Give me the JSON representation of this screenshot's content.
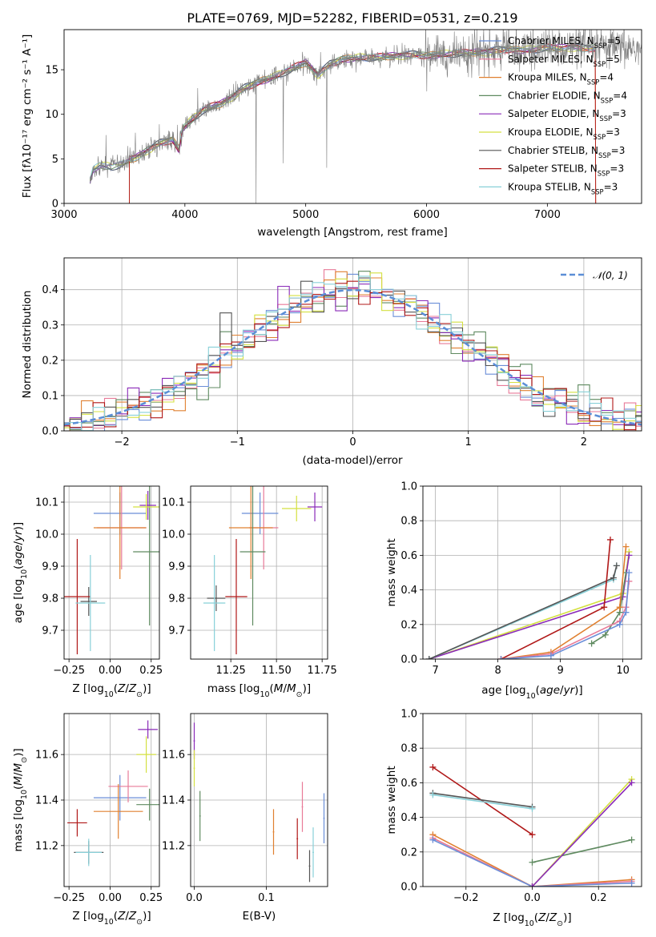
{
  "figure": {
    "title": "PLATE=0769, MJD=52282, FIBERID=0531, z=0.219"
  },
  "chart_data": [
    {
      "id": "spectrum",
      "type": "line",
      "title": "PLATE=0769, MJD=52282, FIBERID=0531, z=0.219",
      "xlabel": "wavelength [Angstrom, rest frame]",
      "ylabel": "Flux [fλ10⁻¹⁷ erg cm⁻² s⁻¹ A⁻¹]",
      "xlim": [
        3000,
        7780
      ],
      "ylim": [
        0,
        19.5
      ],
      "xticks": [
        3000,
        4000,
        5000,
        6000,
        7000
      ],
      "yticks": [
        0,
        5,
        10,
        15
      ],
      "grid": false,
      "legend_position": "upper right",
      "observed_spectrum_color": "#7f7f7f",
      "continuum_x": [
        3215,
        3240,
        3300,
        3400,
        3500,
        3600,
        3700,
        3800,
        3900,
        3950,
        3980,
        4050,
        4150,
        4300,
        4400,
        4500,
        4600,
        4700,
        4800,
        4900,
        5000,
        5100,
        5200,
        5300,
        5400,
        5500,
        5600,
        5700,
        5800,
        5900,
        6000,
        6100,
        6200,
        6300,
        6400,
        6500,
        6600,
        6700,
        6800,
        6900,
        7000,
        7100,
        7200,
        7300,
        7400
      ],
      "continuum_y": [
        2.5,
        3.8,
        4.3,
        4.1,
        4.6,
        5.2,
        6.0,
        6.8,
        7.2,
        6.0,
        8.4,
        9.3,
        10.5,
        11.2,
        12.0,
        13.0,
        13.6,
        14.0,
        14.6,
        15.2,
        15.8,
        14.4,
        15.6,
        16.2,
        16.3,
        16.4,
        16.4,
        16.5,
        16.6,
        16.7,
        16.6,
        16.7,
        16.8,
        16.9,
        16.9,
        17.0,
        17.2,
        17.3,
        17.2,
        17.3,
        17.5,
        17.4,
        17.5,
        17.4,
        17.4
      ],
      "series": [
        {
          "name": "Chabrier MILES, N_SSP=5",
          "color": "#6a8ed8"
        },
        {
          "name": "Salpeter MILES, N_SSP=5",
          "color": "#e87a98"
        },
        {
          "name": "Kroupa MILES, N_SSP=4",
          "color": "#e08030"
        },
        {
          "name": "Chabrier ELODIE, N_SSP=4",
          "color": "#5f8a60"
        },
        {
          "name": "Salpeter ELODIE, N_SSP=3",
          "color": "#8a2ab8"
        },
        {
          "name": "Kroupa ELODIE, N_SSP=3",
          "color": "#d4e040"
        },
        {
          "name": "Chabrier STELIB, N_SSP=3",
          "color": "#555555"
        },
        {
          "name": "Salpeter STELIB, N_SSP=3",
          "color": "#b01818"
        },
        {
          "name": "Kroupa STELIB, N_SSP=3",
          "color": "#88d0d8"
        }
      ],
      "legend_labels": [
        {
          "pre": "Chabrier MILES, N",
          "sub": "SSP",
          "post": "=5"
        },
        {
          "pre": "Salpeter MILES, N",
          "sub": "SSP",
          "post": "=5"
        },
        {
          "pre": "Kroupa MILES, N",
          "sub": "SSP",
          "post": "=4"
        },
        {
          "pre": "Chabrier ELODIE, N",
          "sub": "SSP",
          "post": "=4"
        },
        {
          "pre": "Salpeter ELODIE, N",
          "sub": "SSP",
          "post": "=3"
        },
        {
          "pre": "Kroupa ELODIE, N",
          "sub": "SSP",
          "post": "=3"
        },
        {
          "pre": "Chabrier STELIB, N",
          "sub": "SSP",
          "post": "=3"
        },
        {
          "pre": "Salpeter STELIB, N",
          "sub": "SSP",
          "post": "=3"
        },
        {
          "pre": "Kroupa STELIB, N",
          "sub": "SSP",
          "post": "=3"
        }
      ]
    },
    {
      "id": "residuals",
      "type": "line",
      "xlabel": "(data-model)/error",
      "ylabel": "Normed distribution",
      "xlim": [
        -2.5,
        2.5
      ],
      "ylim": [
        0,
        0.49
      ],
      "xticks": [
        -2,
        -1,
        0,
        1,
        2
      ],
      "yticks": [
        0.0,
        0.1,
        0.2,
        0.3,
        0.4
      ],
      "grid": true,
      "legend_position": "upper right",
      "legend": "𝒩(0, 1)",
      "gaussian_color": "#5b8ed6",
      "bin_width": 0.1
    },
    {
      "id": "age-vs-Z",
      "type": "scatter",
      "xlabel": "Z [log10(Z/Z⊙)]",
      "ylabel": "age  [log10(age/yr)]",
      "xlim": [
        -0.28,
        0.3
      ],
      "ylim": [
        9.61,
        10.15
      ],
      "xticks": [
        -0.25,
        0.0,
        0.25
      ],
      "yticks": [
        9.7,
        9.8,
        9.9,
        10.0,
        10.1
      ],
      "grid": true,
      "points": [
        {
          "series": "Chabrier MILES",
          "x": 0.06,
          "y": 10.065,
          "xerr": 0.16,
          "yerr": 0.065
        },
        {
          "series": "Salpeter MILES",
          "x": 0.07,
          "y": 10.02,
          "xerr": 0.15,
          "yerr": 0.13
        },
        {
          "series": "Kroupa MILES",
          "x": 0.06,
          "y": 10.02,
          "xerr": 0.16,
          "yerr": 0.16
        },
        {
          "series": "Chabrier ELODIE",
          "x": 0.24,
          "y": 9.945,
          "xerr": 0.1,
          "yerr": 0.23
        },
        {
          "series": "Salpeter ELODIE",
          "x": 0.23,
          "y": 10.09,
          "xerr": 0.05,
          "yerr": 0.045
        },
        {
          "series": "Kroupa ELODIE",
          "x": 0.22,
          "y": 10.085,
          "xerr": 0.08,
          "yerr": 0.04
        },
        {
          "series": "Chabrier STELIB",
          "x": -0.13,
          "y": 9.79,
          "xerr": 0.05,
          "yerr": 0.045
        },
        {
          "series": "Salpeter STELIB",
          "x": -0.2,
          "y": 9.805,
          "xerr": 0.08,
          "yerr": 0.18
        },
        {
          "series": "Kroupa STELIB",
          "x": -0.12,
          "y": 9.785,
          "xerr": 0.09,
          "yerr": 0.15
        }
      ]
    },
    {
      "id": "age-vs-mass",
      "type": "scatter",
      "xlabel": "mass [log10(M/M⊙)]",
      "ylabel": "",
      "xlim": [
        11.03,
        11.78
      ],
      "ylim": [
        9.61,
        10.15
      ],
      "xticks": [
        11.25,
        11.5,
        11.75
      ],
      "yticks": [
        9.7,
        9.8,
        9.9,
        10.0,
        10.1
      ],
      "grid": true,
      "points": [
        {
          "series": "Chabrier MILES",
          "x": 11.41,
          "y": 10.065,
          "xerr": 0.1,
          "yerr": 0.065
        },
        {
          "series": "Salpeter MILES",
          "x": 11.43,
          "y": 10.02,
          "xerr": 0.08,
          "yerr": 0.13
        },
        {
          "series": "Kroupa MILES",
          "x": 11.36,
          "y": 10.02,
          "xerr": 0.12,
          "yerr": 0.16
        },
        {
          "series": "Chabrier ELODIE",
          "x": 11.37,
          "y": 9.945,
          "xerr": 0.07,
          "yerr": 0.23
        },
        {
          "series": "Salpeter ELODIE",
          "x": 11.71,
          "y": 10.085,
          "xerr": 0.04,
          "yerr": 0.045
        },
        {
          "series": "Kroupa ELODIE",
          "x": 11.61,
          "y": 10.08,
          "xerr": 0.08,
          "yerr": 0.04
        },
        {
          "series": "Chabrier STELIB",
          "x": 11.17,
          "y": 9.8,
          "xerr": 0.05,
          "yerr": 0.04
        },
        {
          "series": "Salpeter STELIB",
          "x": 11.28,
          "y": 9.805,
          "xerr": 0.06,
          "yerr": 0.18
        },
        {
          "series": "Kroupa STELIB",
          "x": 11.16,
          "y": 9.785,
          "xerr": 0.06,
          "yerr": 0.15
        }
      ]
    },
    {
      "id": "weight-vs-age",
      "type": "line",
      "xlabel": "age  [log10(age/yr)]",
      "ylabel": "mass weight",
      "xlim": [
        6.8,
        10.3
      ],
      "ylim": [
        0,
        1.0
      ],
      "xticks": [
        7,
        8,
        9,
        10
      ],
      "yticks": [
        0.0,
        0.2,
        0.4,
        0.6,
        0.8,
        1.0
      ],
      "grid": true,
      "series": [
        {
          "name": "Kroupa ELODIE",
          "x": [
            6.9,
            10.0,
            10.1
          ],
          "y": [
            0.0,
            0.38,
            0.62
          ]
        },
        {
          "name": "Salpeter ELODIE",
          "x": [
            6.9,
            10.0,
            10.1
          ],
          "y": [
            0.0,
            0.36,
            0.6
          ]
        },
        {
          "name": "Kroupa STELIB",
          "x": [
            6.9,
            9.85,
            9.9
          ],
          "y": [
            0.0,
            0.46,
            0.54
          ]
        },
        {
          "name": "Chabrier STELIB",
          "x": [
            6.9,
            9.85,
            9.9
          ],
          "y": [
            0.0,
            0.47,
            0.54
          ]
        },
        {
          "name": "Salpeter STELIB",
          "x": [
            8.05,
            9.7,
            9.8
          ],
          "y": [
            0.0,
            0.3,
            0.69
          ]
        },
        {
          "name": "Chabrier ELODIE",
          "x": [
            9.5,
            9.72,
            9.95,
            10.05
          ],
          "y": [
            0.09,
            0.14,
            0.27,
            0.5
          ]
        },
        {
          "name": "Kroupa MILES",
          "x": [
            8.05,
            8.85,
            9.95,
            10.05
          ],
          "y": [
            0.0,
            0.04,
            0.3,
            0.65
          ]
        },
        {
          "name": "Salpeter MILES",
          "x": [
            8.05,
            8.85,
            9.95,
            10.05,
            10.1
          ],
          "y": [
            0.0,
            0.03,
            0.22,
            0.3,
            0.45
          ]
        },
        {
          "name": "Chabrier MILES",
          "x": [
            8.05,
            8.85,
            9.95,
            10.05,
            10.1
          ],
          "y": [
            0.0,
            0.02,
            0.2,
            0.27,
            0.5
          ]
        }
      ]
    },
    {
      "id": "mass-vs-Z",
      "type": "scatter",
      "xlabel": "Z [log10(Z/Z⊙)]",
      "ylabel": "mass [log10(M/M⊙)]",
      "xlim": [
        -0.28,
        0.3
      ],
      "ylim": [
        11.02,
        11.78
      ],
      "xticks": [
        -0.25,
        0.0,
        0.25
      ],
      "yticks": [
        11.2,
        11.4,
        11.6
      ],
      "grid": true,
      "points": [
        {
          "series": "Chabrier MILES",
          "x": 0.06,
          "y": 11.41,
          "xerr": 0.16,
          "yerr": 0.1
        },
        {
          "series": "Salpeter MILES",
          "x": 0.11,
          "y": 11.46,
          "xerr": 0.12,
          "yerr": 0.07
        },
        {
          "series": "Kroupa MILES",
          "x": 0.05,
          "y": 11.35,
          "xerr": 0.15,
          "yerr": 0.12
        },
        {
          "series": "Chabrier ELODIE",
          "x": 0.24,
          "y": 11.38,
          "xerr": 0.08,
          "yerr": 0.07
        },
        {
          "series": "Salpeter ELODIE",
          "x": 0.23,
          "y": 11.71,
          "xerr": 0.06,
          "yerr": 0.04
        },
        {
          "series": "Kroupa ELODIE",
          "x": 0.22,
          "y": 11.6,
          "xerr": 0.06,
          "yerr": 0.08
        },
        {
          "series": "Chabrier STELIB",
          "x": -0.13,
          "y": 11.17,
          "xerr": 0.09,
          "yerr": 0.05
        },
        {
          "series": "Salpeter STELIB",
          "x": -0.2,
          "y": 11.3,
          "xerr": 0.06,
          "yerr": 0.06
        },
        {
          "series": "Kroupa STELIB",
          "x": -0.13,
          "y": 11.17,
          "xerr": 0.08,
          "yerr": 0.06
        }
      ]
    },
    {
      "id": "mass-vs-EBV",
      "type": "scatter",
      "xlabel": "E(B-V)",
      "ylabel": "",
      "xlim": [
        -0.005,
        0.185
      ],
      "ylim": [
        11.02,
        11.78
      ],
      "xticks": [
        0.0,
        0.1
      ],
      "yticks": [
        11.2,
        11.4,
        11.6
      ],
      "grid": true,
      "points": [
        {
          "series": "Chabrier MILES",
          "x": 0.18,
          "y": 11.32,
          "xerr": 0.001,
          "yerr": 0.11
        },
        {
          "series": "Salpeter MILES",
          "x": 0.15,
          "y": 11.37,
          "xerr": 0.001,
          "yerr": 0.11
        },
        {
          "series": "Kroupa MILES",
          "x": 0.11,
          "y": 11.26,
          "xerr": 0.001,
          "yerr": 0.1
        },
        {
          "series": "Chabrier ELODIE",
          "x": 0.008,
          "y": 11.33,
          "xerr": 0.001,
          "yerr": 0.11
        },
        {
          "series": "Salpeter ELODIE",
          "x": 0.0,
          "y": 11.66,
          "xerr": 0.001,
          "yerr": 0.08
        },
        {
          "series": "Kroupa ELODIE",
          "x": 0.0,
          "y": 11.54,
          "xerr": 0.001,
          "yerr": 0.08
        },
        {
          "series": "Chabrier STELIB",
          "x": 0.16,
          "y": 11.11,
          "xerr": 0.001,
          "yerr": 0.07
        },
        {
          "series": "Salpeter STELIB",
          "x": 0.143,
          "y": 11.23,
          "xerr": 0.001,
          "yerr": 0.09
        },
        {
          "series": "Kroupa STELIB",
          "x": 0.165,
          "y": 11.17,
          "xerr": 0.001,
          "yerr": 0.11
        }
      ]
    },
    {
      "id": "weight-vs-Z",
      "type": "line",
      "xlabel": "Z [log10(Z/Z⊙)]",
      "ylabel": "mass weight",
      "xlim": [
        -0.33,
        0.33
      ],
      "ylim": [
        0,
        1.0
      ],
      "xticks": [
        -0.2,
        0.0,
        0.2
      ],
      "yticks": [
        0.0,
        0.2,
        0.4,
        0.6,
        0.8,
        1.0
      ],
      "grid": true,
      "series": [
        {
          "name": "Salpeter STELIB",
          "x": [
            -0.3,
            0.0
          ],
          "y": [
            0.69,
            0.3
          ]
        },
        {
          "name": "Chabrier STELIB",
          "x": [
            -0.3,
            0.0
          ],
          "y": [
            0.54,
            0.46
          ]
        },
        {
          "name": "Kroupa STELIB",
          "x": [
            -0.3,
            0.0
          ],
          "y": [
            0.53,
            0.45
          ]
        },
        {
          "name": "Kroupa MILES",
          "x": [
            -0.3,
            0.0,
            0.3
          ],
          "y": [
            0.3,
            0.0,
            0.04
          ]
        },
        {
          "name": "Salpeter MILES",
          "x": [
            -0.3,
            0.0,
            0.3
          ],
          "y": [
            0.28,
            0.0,
            0.03
          ]
        },
        {
          "name": "Chabrier MILES",
          "x": [
            -0.3,
            0.0,
            0.3
          ],
          "y": [
            0.27,
            0.0,
            0.02
          ]
        },
        {
          "name": "Chabrier ELODIE",
          "x": [
            0.0,
            0.3
          ],
          "y": [
            0.14,
            0.27
          ]
        },
        {
          "name": "Kroupa ELODIE",
          "x": [
            0.0,
            0.3
          ],
          "y": [
            0.0,
            0.62
          ]
        },
        {
          "name": "Salpeter ELODIE",
          "x": [
            0.0,
            0.3
          ],
          "y": [
            0.0,
            0.6
          ]
        }
      ]
    }
  ]
}
